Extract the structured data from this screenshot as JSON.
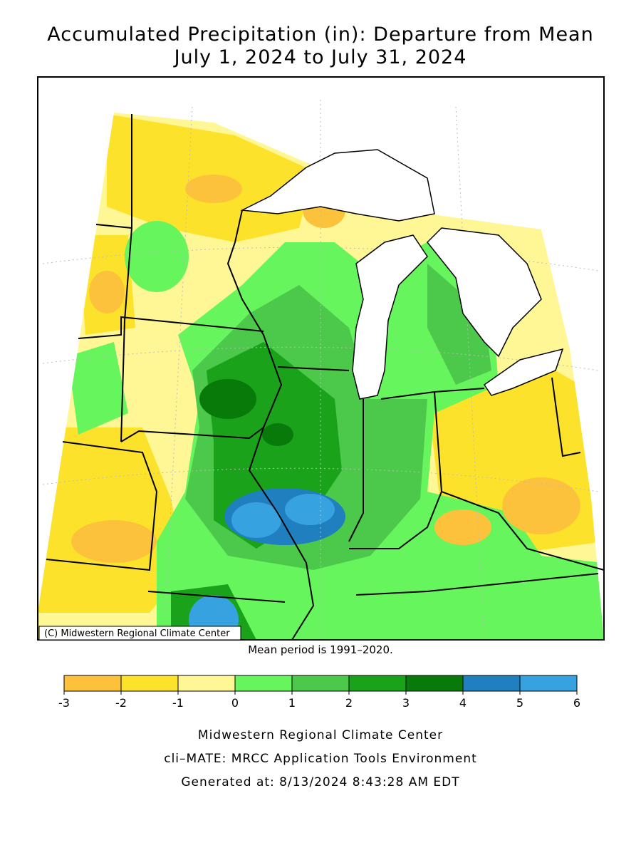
{
  "title": "Accumulated Precipitation (in): Departure from Mean",
  "subtitle": "July 1, 2024 to July 31, 2024",
  "copyright": "(C) Midwestern Regional Climate Center",
  "note": "Mean period is 1991–2020.",
  "legend": {
    "ticks": [
      -3,
      -2,
      -1,
      0,
      1,
      2,
      3,
      4,
      5,
      6
    ],
    "colors": [
      "#fcc23c",
      "#fde22c",
      "#fff796",
      "#66f55c",
      "#4cc84a",
      "#1aa31a",
      "#087a0a",
      "#1f7fbf",
      "#36a3e0"
    ]
  },
  "footer": [
    "Midwestern Regional Climate Center",
    "cli–MATE: MRCC Application Tools Environment",
    "Generated at: 8/13/2024 8:43:28 AM EDT"
  ]
}
